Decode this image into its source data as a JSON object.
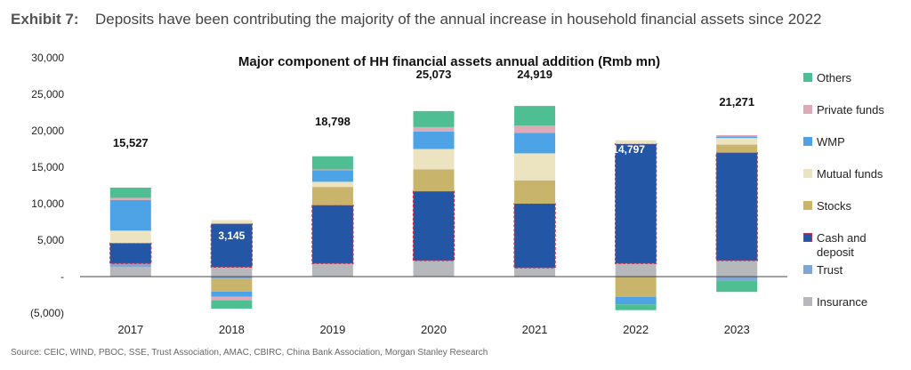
{
  "exhibit": {
    "label": "Exhibit 7:",
    "title": "Deposits have been contributing the majority of the annual increase in household financial assets since 2022"
  },
  "source": "Source: CEIC, WIND, PBOC, SSE, Trust Association, AMAC, CBIRC, China Bank Association, Morgan Stanley Research",
  "chart_data": {
    "type": "bar",
    "stacked": true,
    "title": "Major component of HH financial assets annual addition (Rmb mn)",
    "categories": [
      "2017",
      "2018",
      "2019",
      "2020",
      "2021",
      "2022",
      "2023"
    ],
    "ylim": [
      -5000,
      30000
    ],
    "yticks": [
      -5000,
      0,
      5000,
      10000,
      15000,
      20000,
      25000,
      30000
    ],
    "ytick_labels": [
      "(5,000)",
      "-",
      "5,000",
      "10,000",
      "15,000",
      "20,000",
      "25,000",
      "30,000"
    ],
    "grid": false,
    "legend_position": "right",
    "series": [
      {
        "name": "Insurance",
        "color": "#b7b8bc",
        "values": [
          1300,
          1300,
          1800,
          2200,
          1200,
          1800,
          2200
        ]
      },
      {
        "name": "Trust",
        "color": "#7fa7d6",
        "values": [
          500,
          -250,
          0,
          0,
          0,
          0,
          -600
        ]
      },
      {
        "name": "Cash and deposit",
        "color": "#2456a6",
        "values": [
          2800,
          5950,
          8000,
          9500,
          8800,
          16400,
          14800
        ]
      },
      {
        "name": "Stocks",
        "color": "#c9b46b",
        "values": [
          0,
          -1800,
          2500,
          3000,
          3200,
          -2800,
          1100
        ]
      },
      {
        "name": "Mutual funds",
        "color": "#ece3c0",
        "values": [
          1700,
          500,
          700,
          2800,
          3700,
          500,
          900
        ]
      },
      {
        "name": "WMP",
        "color": "#4da3e6",
        "values": [
          4200,
          -700,
          1600,
          2400,
          2800,
          -1000,
          200
        ]
      },
      {
        "name": "Private funds",
        "color": "#ddaab8",
        "values": [
          300,
          -500,
          100,
          600,
          1000,
          0,
          200
        ]
      },
      {
        "name": "Others",
        "color": "#4fbf93",
        "values": [
          1400,
          -1150,
          1800,
          2200,
          2700,
          -800,
          -1500
        ]
      }
    ],
    "totals": [
      {
        "category": "2017",
        "label": "15,527",
        "value": 15527
      },
      {
        "category": "2019",
        "label": "18,798",
        "value": 18798
      },
      {
        "category": "2020",
        "label": "25,073",
        "value": 25073
      },
      {
        "category": "2021",
        "label": "24,919",
        "value": 24919
      },
      {
        "category": "2023",
        "label": "21,271",
        "value": 21271
      }
    ],
    "annotations": [
      {
        "category": "2018",
        "label": "3,145",
        "value": 3145
      },
      {
        "category": "2022",
        "label": "14,797",
        "value": 14797
      }
    ],
    "highlight_color": "#c4314b"
  }
}
